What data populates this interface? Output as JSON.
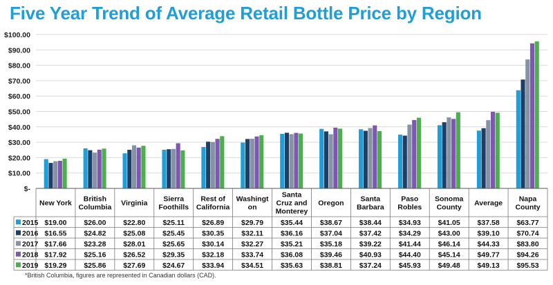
{
  "chart_data": {
    "type": "bar",
    "title": "Five Year Trend of Average Retail Bottle Price by Region",
    "footnote": "*British Columbia, figures are represented in Canadian dollars (CAD).",
    "xlabel": "",
    "ylabel": "",
    "ylim": [
      0,
      100
    ],
    "y_ticks": [
      "$-",
      "$10.00",
      "$20.00",
      "$30.00",
      "$40.00",
      "$50.00",
      "$60.00",
      "$70.00",
      "$80.00",
      "$90.00",
      "$100.00"
    ],
    "categories": [
      [
        "New York"
      ],
      [
        "British",
        "Columbia"
      ],
      [
        "Virginia"
      ],
      [
        "Sierra",
        "Foothills"
      ],
      [
        "Rest of",
        "California"
      ],
      [
        "Washingt",
        "on"
      ],
      [
        "Santa",
        "Cruz and",
        "Monterey"
      ],
      [
        "Oregon"
      ],
      [
        "Santa",
        "Barbara"
      ],
      [
        "Paso",
        "Robles"
      ],
      [
        "Sonoma",
        "County"
      ],
      [
        "Average"
      ],
      [
        "Napa",
        "County"
      ]
    ],
    "grid": true,
    "legend": "data-table-left",
    "series": [
      {
        "name": "2015",
        "color": "#1f9ed8",
        "values": [
          19.0,
          26.0,
          22.8,
          25.11,
          26.89,
          29.79,
          35.44,
          38.67,
          38.44,
          34.93,
          41.05,
          37.58,
          63.77
        ],
        "labels": [
          "$19.00",
          "$26.00",
          "$22.80",
          "$25.11",
          "$26.89",
          "$29.79",
          "$35.44",
          "$38.67",
          "$38.44",
          "$34.93",
          "$41.05",
          "$37.58",
          "$63.77"
        ]
      },
      {
        "name": "2016",
        "color": "#1d3f66",
        "values": [
          16.55,
          24.82,
          25.08,
          25.45,
          30.35,
          32.11,
          36.16,
          37.04,
          37.42,
          34.29,
          43.0,
          39.1,
          70.74
        ],
        "labels": [
          "$16.55",
          "$24.82",
          "$25.08",
          "$25.45",
          "$30.35",
          "$32.11",
          "$36.16",
          "$37.04",
          "$37.42",
          "$34.29",
          "$43.00",
          "$39.10",
          "$70.74"
        ]
      },
      {
        "name": "2017",
        "color": "#8793a5",
        "values": [
          17.66,
          23.28,
          28.01,
          25.65,
          30.14,
          32.27,
          35.21,
          35.18,
          39.22,
          41.44,
          46.14,
          44.33,
          83.8
        ],
        "labels": [
          "$17.66",
          "$23.28",
          "$28.01",
          "$25.65",
          "$30.14",
          "$32.27",
          "$35.21",
          "$35.18",
          "$39.22",
          "$41.44",
          "$46.14",
          "$44.33",
          "$83.80"
        ]
      },
      {
        "name": "2018",
        "color": "#7e57b3",
        "values": [
          17.92,
          25.16,
          26.52,
          29.35,
          32.18,
          33.74,
          36.08,
          39.46,
          40.93,
          44.4,
          45.14,
          49.77,
          94.26
        ],
        "labels": [
          "$17.92",
          "$25.16",
          "$26.52",
          "$29.35",
          "$32.18",
          "$33.74",
          "$36.08",
          "$39.46",
          "$40.93",
          "$44.40",
          "$45.14",
          "$49.77",
          "$94.26"
        ]
      },
      {
        "name": "2019",
        "color": "#4cae4c",
        "values": [
          19.29,
          25.86,
          27.69,
          24.67,
          33.94,
          34.51,
          35.63,
          38.81,
          37.24,
          45.93,
          49.48,
          49.13,
          95.53
        ],
        "labels": [
          "$19.29",
          "$25.86",
          "$27.69",
          "$24.67",
          "$33.94",
          "$34.51",
          "$35.63",
          "$38.81",
          "$37.24",
          "$45.93",
          "$49.48",
          "$49.13",
          "$95.53"
        ]
      }
    ]
  }
}
